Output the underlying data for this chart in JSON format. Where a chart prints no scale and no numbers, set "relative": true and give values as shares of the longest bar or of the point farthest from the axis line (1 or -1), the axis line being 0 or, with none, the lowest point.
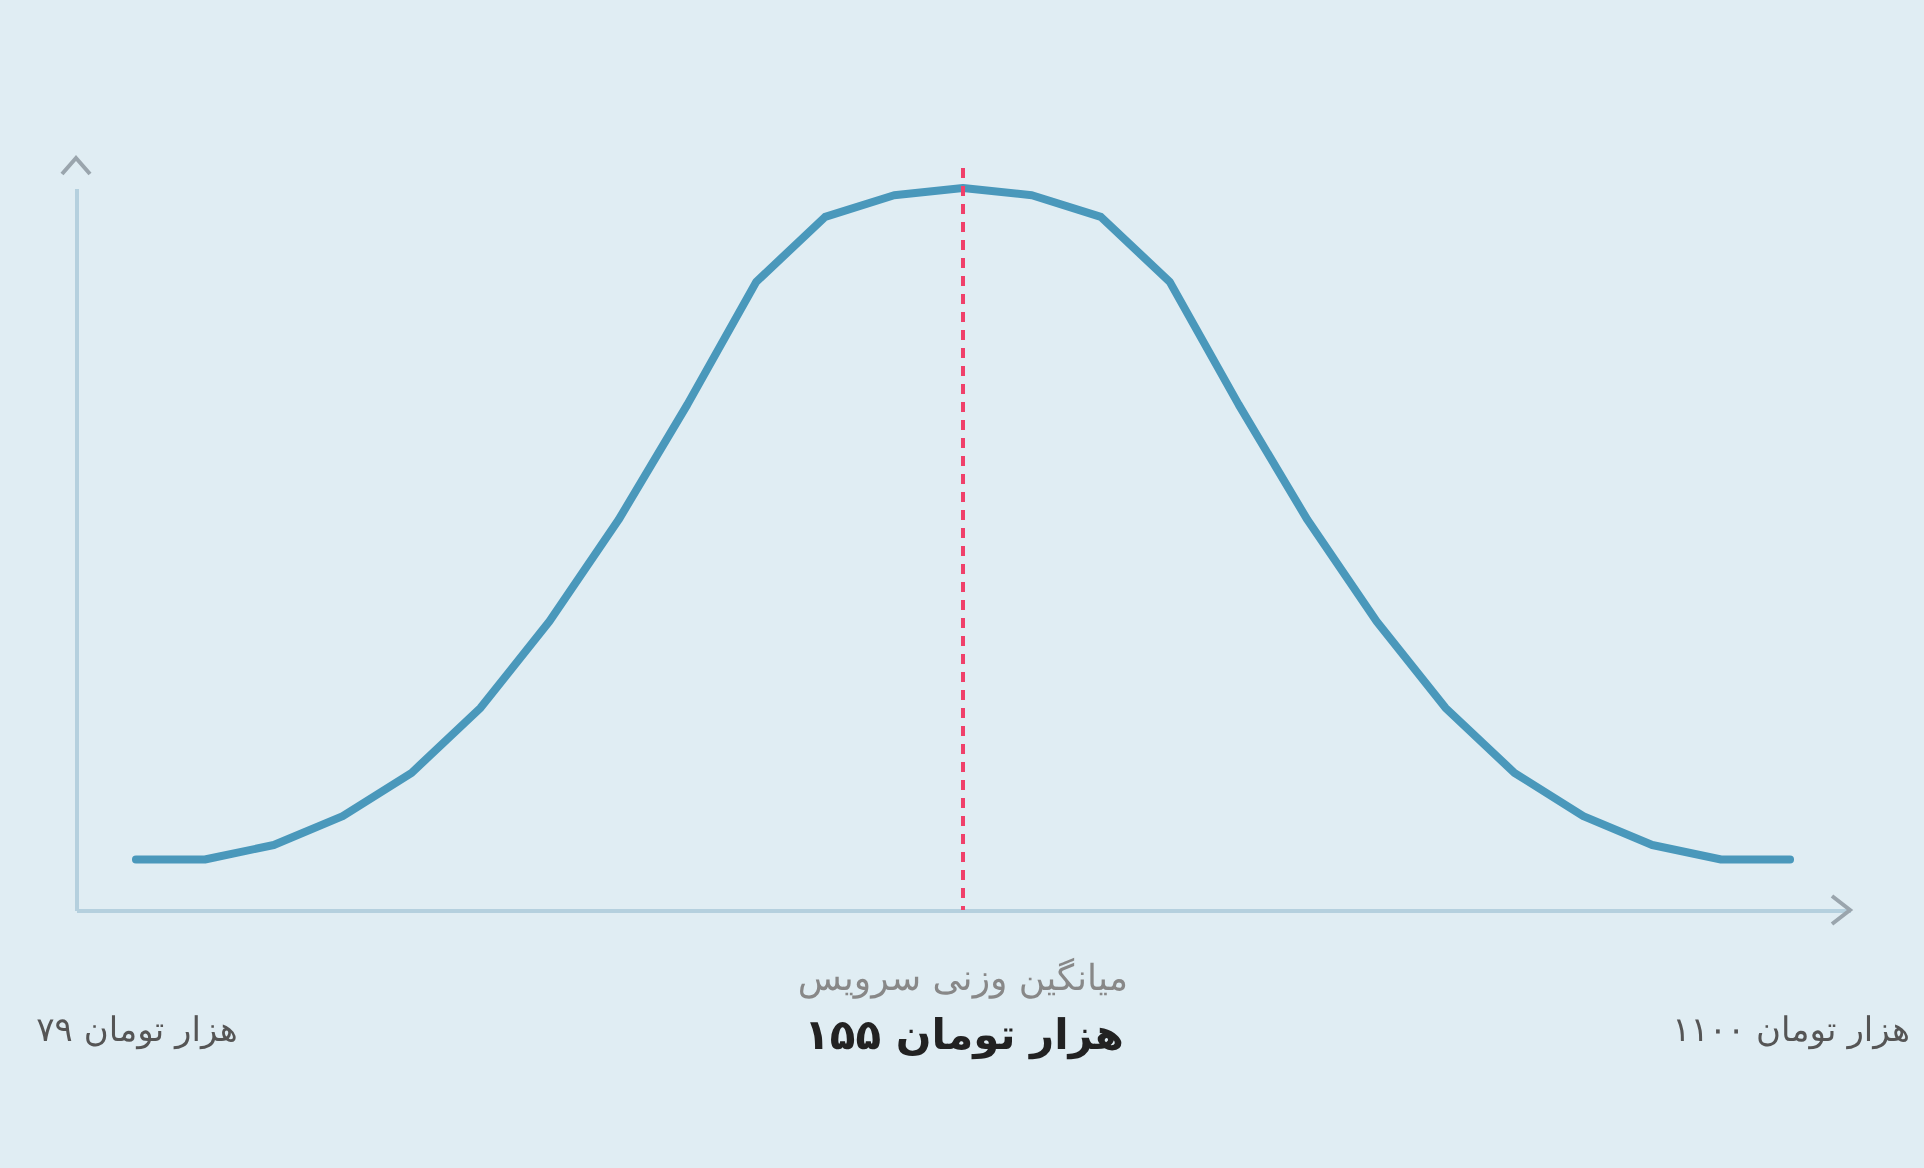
{
  "chart_data": {
    "type": "line",
    "relative": true,
    "categories": [
      "۷۹ هزار تومان",
      null,
      null,
      null,
      null,
      null,
      null,
      null,
      null,
      null,
      null,
      null,
      "۱۵۵ هزار تومان",
      null,
      null,
      null,
      null,
      null,
      null,
      null,
      null,
      null,
      null,
      null,
      "۱۱۰۰ هزار تومان"
    ],
    "series": [
      {
        "color": "#4a98bb",
        "values": [
          0.07,
          0.07,
          0.09,
          0.13,
          0.19,
          0.28,
          0.4,
          0.54,
          0.7,
          0.87,
          0.96,
          0.99,
          1,
          0.99,
          0.96,
          0.87,
          0.7,
          0.54,
          0.4,
          0.28,
          0.19,
          0.13,
          0.09,
          0.07,
          0.07
        ]
      }
    ],
    "ref_lines": [
      {
        "axis": "x",
        "value": "۱۵۵ هزار تومان",
        "label": "میانگین وزنی سرویس",
        "color": "#f0406a",
        "line_style": "dashed"
      }
    ],
    "legend": false,
    "marker": "none"
  }
}
